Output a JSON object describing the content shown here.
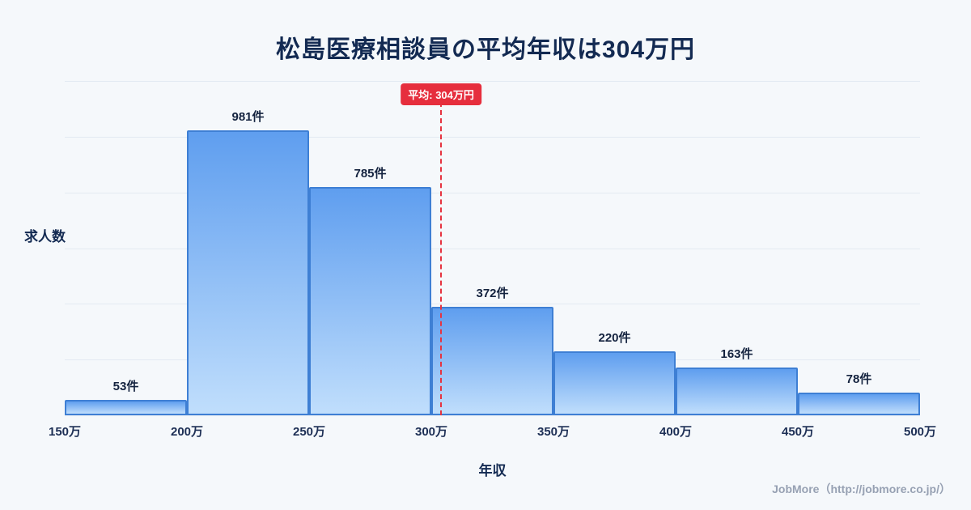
{
  "title": "松島医療相談員の平均年収は304万円",
  "chart_data": {
    "type": "bar",
    "subtype": "histogram",
    "title": "松島医療相談員の平均年収は304万円",
    "xlabel": "年収",
    "ylabel": "求人数",
    "bin_edge_labels": [
      "150万",
      "200万",
      "250万",
      "300万",
      "350万",
      "400万",
      "450万",
      "500万"
    ],
    "bin_edges_value": [
      150,
      200,
      250,
      300,
      350,
      400,
      450,
      500
    ],
    "values": [
      53,
      981,
      785,
      372,
      220,
      163,
      78
    ],
    "value_labels": [
      "53件",
      "981件",
      "785件",
      "372件",
      "220件",
      "163件",
      "78件"
    ],
    "average": {
      "label": "平均: 304万円",
      "value": 304,
      "x_min": 150,
      "x_max": 500
    },
    "ylim": [
      0,
      1150
    ],
    "gridline_count": 7,
    "grid": true,
    "legend": "none",
    "colors": {
      "bar_gradient_top": "#5f9eef",
      "bar_gradient_bottom": "#c0defc",
      "bar_border": "#3e7fd4",
      "average_line": "#e63340",
      "average_badge_bg": "#e62e3d",
      "title_text": "#132a52",
      "background": "#f5f8fb",
      "gridline": "#e3eaf2"
    }
  },
  "footer": {
    "credit": "JobMore（http://jobmore.co.jp/）"
  }
}
